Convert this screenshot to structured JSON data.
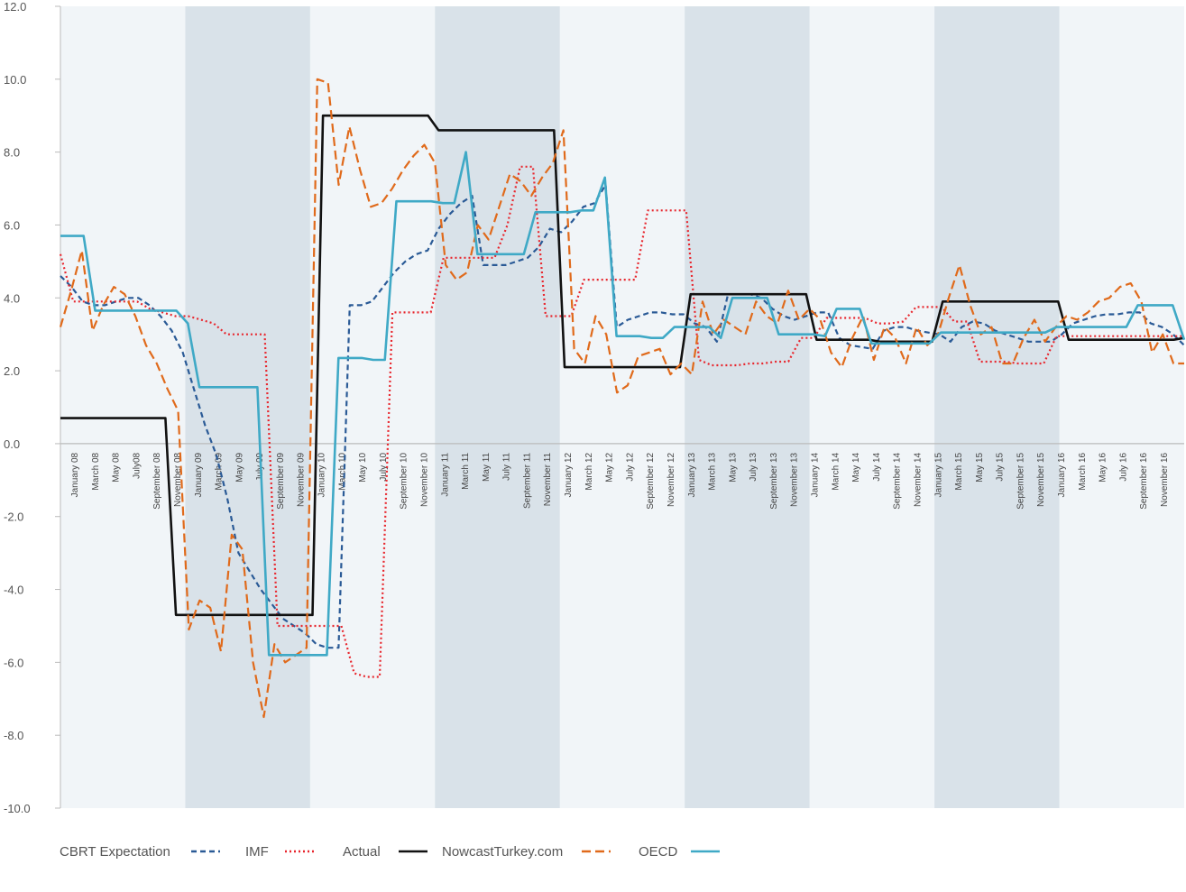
{
  "chart_data": {
    "type": "line",
    "title": "",
    "xlabel": "",
    "ylabel": "",
    "ylim": [
      -10,
      12
    ],
    "yticks": [
      "-10.0",
      "-8.0",
      "-6.0",
      "-4.0",
      "-2.0",
      "0.0",
      "2.0",
      "4.0",
      "6.0",
      "8.0",
      "10.0",
      "12.0"
    ],
    "grid": false,
    "legend_position": "bottom",
    "x_labels": [
      "January 08",
      "March 08",
      "May 08",
      "July08",
      "September 08",
      "November 08",
      "January 09",
      "March 09",
      "May 09",
      "July 09",
      "September 09",
      "November 09",
      "January 10",
      "March 10",
      "May 10",
      "July 10",
      "September 10",
      "November 10",
      "January 11",
      "March 11",
      "May 11",
      "July 11",
      "September 11",
      "November 11",
      "January 12",
      "March 12",
      "May 12",
      "July 12",
      "September 12",
      "November 12",
      "January 13",
      "March 13",
      "May 13",
      "July 13",
      "September 13",
      "November 13",
      "January 14",
      "March 14",
      "May 14",
      "July 14",
      "September 14",
      "November 14",
      "January 15",
      "March 15",
      "May 15",
      "July 15",
      "September 15",
      "November 15",
      "January 16",
      "March 16",
      "May 16",
      "July 16",
      "September 16",
      "November 16"
    ],
    "shaded_bands_years": [
      "2009",
      "2011",
      "2013",
      "2015"
    ],
    "series": [
      {
        "name": "CBRT Expectation",
        "color": "#2a5a96",
        "dash": "6,4",
        "y": [
          4.6,
          4.3,
          3.9,
          3.8,
          3.8,
          3.9,
          4.0,
          4.0,
          3.8,
          3.5,
          3.1,
          2.5,
          1.5,
          0.5,
          -0.3,
          -1.5,
          -3.0,
          -3.5,
          -4.0,
          -4.4,
          -4.8,
          -5.0,
          -5.2,
          -5.5,
          -5.6,
          -5.6,
          3.8,
          3.8,
          3.9,
          4.3,
          4.7,
          5.0,
          5.2,
          5.3,
          5.9,
          6.3,
          6.6,
          6.8,
          4.9,
          4.9,
          4.9,
          5.0,
          5.1,
          5.4,
          5.9,
          5.8,
          6.1,
          6.5,
          6.6,
          7.1,
          3.2,
          3.4,
          3.5,
          3.6,
          3.6,
          3.55,
          3.55,
          3.3,
          3.2,
          2.8,
          4.1,
          4.1,
          4.1,
          4.0,
          3.7,
          3.5,
          3.4,
          3.5,
          3.6,
          3.6,
          2.9,
          2.7,
          2.65,
          2.6,
          3.1,
          3.2,
          3.2,
          3.1,
          3.05,
          3.0,
          2.8,
          3.2,
          3.35,
          3.3,
          3.1,
          3.0,
          2.9,
          2.8,
          2.8,
          2.8,
          3.0,
          3.3,
          3.4,
          3.5,
          3.55,
          3.55,
          3.6,
          3.6,
          3.3,
          3.2,
          3.0,
          2.7
        ]
      },
      {
        "name": "IMF",
        "color": "#e8262d",
        "dash": "2,3",
        "y": [
          5.2,
          3.9,
          3.9,
          3.9,
          3.9,
          3.9,
          3.9,
          3.7,
          3.6,
          3.5,
          3.5,
          3.4,
          3.3,
          3.0,
          3.0,
          3.0,
          3.0,
          -5.0,
          -5.0,
          -5.0,
          -5.0,
          -5.0,
          -5.0,
          -6.3,
          -6.4,
          -6.4,
          3.6,
          3.6,
          3.6,
          3.6,
          5.1,
          5.1,
          5.1,
          5.1,
          5.1,
          6.0,
          7.6,
          7.6,
          3.5,
          3.5,
          3.5,
          4.5,
          4.5,
          4.5,
          4.5,
          4.5,
          6.4,
          6.4,
          6.4,
          6.4,
          2.3,
          2.15,
          2.15,
          2.15,
          2.2,
          2.2,
          2.25,
          2.25,
          2.9,
          2.9,
          3.45,
          3.45,
          3.45,
          3.45,
          3.3,
          3.3,
          3.35,
          3.75,
          3.75,
          3.75,
          3.35,
          3.35,
          2.25,
          2.25,
          2.25,
          2.2,
          2.2,
          2.2,
          2.95,
          2.95,
          2.95,
          2.95,
          2.95,
          2.95,
          2.95,
          2.95,
          2.95,
          2.95,
          2.95
        ]
      },
      {
        "name": "Actual",
        "color": "#111111",
        "dash": "",
        "y": [
          0.7,
          0.7,
          0.7,
          0.7,
          0.7,
          0.7,
          0.7,
          0.7,
          0.7,
          0.7,
          0.7,
          -4.7,
          -4.7,
          -4.7,
          -4.7,
          -4.7,
          -4.7,
          -4.7,
          -4.7,
          -4.7,
          -4.7,
          -4.7,
          -4.7,
          -4.7,
          -4.7,
          9.0,
          9.0,
          9.0,
          9.0,
          9.0,
          9.0,
          9.0,
          9.0,
          9.0,
          9.0,
          9.0,
          8.6,
          8.6,
          8.6,
          8.6,
          8.6,
          8.6,
          8.6,
          8.6,
          8.6,
          8.6,
          8.6,
          8.6,
          2.1,
          2.1,
          2.1,
          2.1,
          2.1,
          2.1,
          2.1,
          2.1,
          2.1,
          2.1,
          2.1,
          2.1,
          4.1,
          4.1,
          4.1,
          4.1,
          4.1,
          4.1,
          4.1,
          4.1,
          4.1,
          4.1,
          4.1,
          4.1,
          2.85,
          2.85,
          2.85,
          2.85,
          2.85,
          2.85,
          2.8,
          2.8,
          2.8,
          2.8,
          2.8,
          2.8,
          3.9,
          3.9,
          3.9,
          3.9,
          3.9,
          3.9,
          3.9,
          3.9,
          3.9,
          3.9,
          3.9,
          3.9,
          2.85,
          2.85,
          2.85,
          2.85,
          2.85,
          2.85,
          2.85,
          2.85,
          2.85,
          2.85,
          2.85,
          2.9
        ]
      },
      {
        "name": "NowcastTurkey.com",
        "color": "#e06a1b",
        "dash": "10,5",
        "y": [
          3.2,
          4.2,
          5.3,
          3.1,
          3.8,
          4.3,
          4.1,
          3.5,
          2.7,
          2.2,
          1.5,
          0.9,
          -5.1,
          -4.3,
          -4.5,
          -5.7,
          -2.5,
          -2.9,
          -6.0,
          -7.5,
          -5.5,
          -6.0,
          -5.8,
          -5.6,
          10.0,
          9.9,
          7.1,
          8.7,
          7.5,
          6.5,
          6.6,
          7.0,
          7.5,
          7.9,
          8.2,
          7.7,
          4.9,
          4.5,
          4.7,
          6.0,
          5.6,
          6.5,
          7.4,
          7.2,
          6.8,
          7.3,
          7.7,
          8.6,
          2.6,
          2.2,
          3.5,
          3.0,
          1.4,
          1.6,
          2.4,
          2.5,
          2.6,
          1.9,
          2.2,
          1.9,
          3.9,
          3.0,
          3.4,
          3.2,
          3.0,
          3.9,
          3.5,
          3.3,
          4.2,
          3.4,
          3.7,
          3.4,
          2.5,
          2.1,
          2.9,
          3.5,
          2.3,
          3.2,
          2.9,
          2.2,
          3.2,
          2.7,
          3.0,
          4.0,
          4.9,
          3.8,
          3.0,
          3.2,
          2.2,
          2.2,
          2.9,
          3.4,
          2.8,
          3.2,
          3.5,
          3.4,
          3.6,
          3.9,
          4.0,
          4.3,
          4.4,
          3.9,
          2.5,
          3.0,
          2.2,
          2.2
        ]
      },
      {
        "name": "OECD",
        "color": "#3fa9c6",
        "dash": "",
        "y": [
          5.7,
          5.7,
          5.7,
          3.65,
          3.65,
          3.65,
          3.65,
          3.65,
          3.65,
          3.65,
          3.65,
          3.3,
          1.55,
          1.55,
          1.55,
          1.55,
          1.55,
          1.55,
          -5.8,
          -5.8,
          -5.8,
          -5.8,
          -5.8,
          -5.8,
          2.35,
          2.35,
          2.35,
          2.3,
          2.3,
          6.65,
          6.65,
          6.65,
          6.65,
          6.6,
          6.6,
          8.0,
          5.2,
          5.2,
          5.2,
          5.2,
          5.2,
          6.35,
          6.35,
          6.35,
          6.35,
          6.4,
          6.4,
          7.3,
          2.95,
          2.95,
          2.95,
          2.9,
          2.9,
          3.2,
          3.2,
          3.2,
          3.2,
          2.9,
          4.0,
          4.0,
          4.0,
          4.0,
          3.0,
          3.0,
          3.0,
          3.0,
          2.95,
          3.7,
          3.7,
          3.7,
          2.75,
          2.75,
          2.75,
          2.75,
          2.75,
          2.75,
          3.05,
          3.05,
          3.05,
          3.05,
          3.05,
          3.05,
          3.05,
          3.05,
          3.05,
          3.05,
          3.2,
          3.2,
          3.2,
          3.2,
          3.2,
          3.2,
          3.2,
          3.8,
          3.8,
          3.8,
          3.8,
          2.85
        ]
      }
    ]
  }
}
